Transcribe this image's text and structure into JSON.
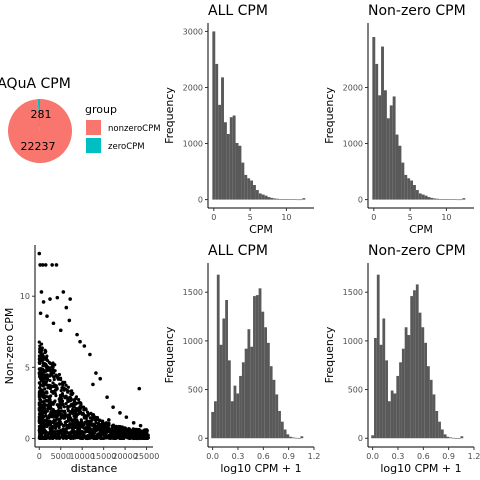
{
  "chart_data": [
    {
      "type": "pie",
      "title": "AQuA CPM",
      "slices": [
        {
          "label": "nonzeroCPM",
          "value": 22237,
          "color": "#F8766D"
        },
        {
          "label": "zeroCPM",
          "value": 281,
          "color": "#00BFC4"
        }
      ],
      "legend": {
        "title": "group",
        "position": "right"
      }
    },
    {
      "type": "bar",
      "title": "ALL CPM",
      "xlabel": "CPM",
      "ylabel": "Frequency",
      "xlim": [
        -0.8,
        13.8
      ],
      "ylim": [
        -150,
        3150
      ],
      "xticks": [
        0,
        5,
        10
      ],
      "yticks": [
        0,
        1000,
        2000,
        3000
      ],
      "x": [
        0.0,
        0.4,
        0.8,
        1.2,
        1.6,
        2.0,
        2.4,
        2.8,
        3.2,
        3.6,
        4.0,
        4.4,
        4.8,
        5.2,
        5.6,
        6.0,
        6.4,
        6.8,
        7.2,
        7.6,
        8.0,
        8.4,
        8.8,
        9.2,
        9.6,
        10.0,
        10.4,
        10.8,
        11.2,
        11.6,
        12.0,
        12.4
      ],
      "values": [
        3000,
        2420,
        1690,
        2180,
        1380,
        1170,
        1470,
        1500,
        1010,
        960,
        660,
        440,
        380,
        340,
        260,
        170,
        110,
        90,
        70,
        45,
        30,
        20,
        15,
        10,
        8,
        6,
        5,
        4,
        3,
        2,
        2,
        25
      ]
    },
    {
      "type": "bar",
      "title": "Non-zero CPM",
      "xlabel": "CPM",
      "ylabel": "Frequency",
      "xlim": [
        -0.8,
        13.8
      ],
      "ylim": [
        -150,
        3150
      ],
      "xticks": [
        0,
        5,
        10
      ],
      "yticks": [
        0,
        1000,
        2000
      ],
      "x": [
        0.0,
        0.4,
        0.8,
        1.2,
        1.6,
        2.0,
        2.4,
        2.8,
        3.2,
        3.6,
        4.0,
        4.4,
        4.8,
        5.2,
        5.6,
        6.0,
        6.4,
        6.8,
        7.2,
        7.6,
        8.0,
        8.4,
        8.8,
        9.2,
        9.6,
        10.0,
        10.4,
        10.8,
        11.2,
        11.6,
        12.0,
        12.4
      ],
      "values": [
        2900,
        2420,
        1860,
        2730,
        1950,
        1450,
        1680,
        1840,
        1160,
        960,
        660,
        440,
        380,
        340,
        260,
        170,
        110,
        90,
        70,
        45,
        30,
        20,
        15,
        10,
        8,
        6,
        5,
        4,
        3,
        2,
        2,
        25
      ]
    },
    {
      "type": "scatter",
      "title": "",
      "xlabel": "distance",
      "ylabel": "Non-zero CPM",
      "xlim": [
        -1000,
        26500
      ],
      "ylim": [
        -0.6,
        13.6
      ],
      "xticks": [
        0,
        5000,
        10000,
        15000,
        20000,
        25000
      ],
      "yticks": [
        0,
        5,
        10
      ],
      "points": [
        [
          0,
          13
        ],
        [
          200,
          12.2
        ],
        [
          800,
          12.2
        ],
        [
          1500,
          12.2
        ],
        [
          3000,
          12.2
        ],
        [
          4000,
          12.2
        ],
        [
          500,
          10.3
        ],
        [
          1000,
          9.6
        ],
        [
          2500,
          9.8
        ],
        [
          4200,
          9.9
        ],
        [
          5600,
          10.3
        ],
        [
          6300,
          9.2
        ],
        [
          7200,
          9.8
        ],
        [
          300,
          8.8
        ],
        [
          1800,
          8.6
        ],
        [
          3300,
          8.1
        ],
        [
          5000,
          7.6
        ],
        [
          7000,
          8.3
        ],
        [
          8800,
          7.3
        ],
        [
          9500,
          6.8
        ],
        [
          10500,
          6.5
        ],
        [
          11800,
          5.9
        ],
        [
          13200,
          4.6
        ],
        [
          14200,
          4.2
        ],
        [
          15800,
          2.9
        ],
        [
          17200,
          2.2
        ],
        [
          18800,
          1.8
        ],
        [
          20300,
          1.5
        ],
        [
          22000,
          1.1
        ],
        [
          23600,
          0.9
        ],
        [
          25000,
          0.6
        ],
        [
          23300,
          3.5
        ],
        [
          12500,
          3.8
        ],
        [
          16200,
          1.3
        ],
        [
          19500,
          0.4
        ]
      ],
      "dense_band": [
        [
          0,
          7.0
        ],
        [
          2000,
          6.0
        ],
        [
          5000,
          4.5
        ],
        [
          8000,
          3.2
        ],
        [
          10000,
          2.4
        ],
        [
          12000,
          1.8
        ],
        [
          15000,
          1.2
        ],
        [
          18000,
          0.9
        ],
        [
          21000,
          0.7
        ],
        [
          25500,
          0.6
        ]
      ]
    },
    {
      "type": "bar",
      "title": "ALL CPM",
      "xlabel": "log10 CPM + 1",
      "ylabel": "Frequency",
      "xlim": [
        -0.055,
        1.2
      ],
      "ylim": [
        -90,
        1800
      ],
      "xticks": [
        0.0,
        0.3,
        0.6,
        0.9,
        1.2
      ],
      "xtick_labels": [
        "0.0",
        "0.3",
        "0.6",
        "0.9",
        "1.2"
      ],
      "yticks": [
        0,
        500,
        1000,
        1500
      ],
      "x": [
        0.0,
        0.033,
        0.066,
        0.099,
        0.132,
        0.165,
        0.198,
        0.231,
        0.264,
        0.297,
        0.33,
        0.363,
        0.396,
        0.429,
        0.462,
        0.495,
        0.528,
        0.561,
        0.594,
        0.627,
        0.66,
        0.693,
        0.726,
        0.759,
        0.792,
        0.825,
        0.858,
        0.891,
        0.924,
        0.957,
        0.99,
        1.023,
        1.056
      ],
      "values": [
        270,
        380,
        1680,
        960,
        1230,
        1420,
        800,
        380,
        540,
        460,
        640,
        780,
        920,
        1120,
        940,
        1460,
        1470,
        1540,
        1300,
        1140,
        980,
        740,
        600,
        450,
        280,
        170,
        90,
        40,
        15,
        8,
        4,
        2,
        20
      ]
    },
    {
      "type": "bar",
      "title": "Non-zero CPM",
      "xlabel": "log10 CPM + 1",
      "ylabel": "Frequency",
      "xlim": [
        -0.055,
        1.2
      ],
      "ylim": [
        -90,
        1800
      ],
      "xticks": [
        0.0,
        0.3,
        0.6,
        0.9,
        1.2
      ],
      "xtick_labels": [
        "0.0",
        "0.3",
        "0.6",
        "0.9",
        "1.2"
      ],
      "yticks": [
        0,
        500,
        1000,
        1500
      ],
      "x": [
        0.0,
        0.033,
        0.066,
        0.099,
        0.132,
        0.165,
        0.198,
        0.231,
        0.264,
        0.297,
        0.33,
        0.363,
        0.396,
        0.429,
        0.462,
        0.495,
        0.528,
        0.561,
        0.594,
        0.627,
        0.66,
        0.693,
        0.726,
        0.759,
        0.792,
        0.825,
        0.858,
        0.891,
        0.924,
        0.957,
        0.99,
        1.023,
        1.056
      ],
      "values": [
        30,
        1030,
        1680,
        960,
        1230,
        800,
        380,
        490,
        460,
        640,
        780,
        920,
        1140,
        1060,
        1460,
        1520,
        1580,
        1290,
        1140,
        980,
        740,
        600,
        450,
        280,
        170,
        90,
        40,
        15,
        8,
        4,
        2,
        1,
        20
      ]
    }
  ]
}
